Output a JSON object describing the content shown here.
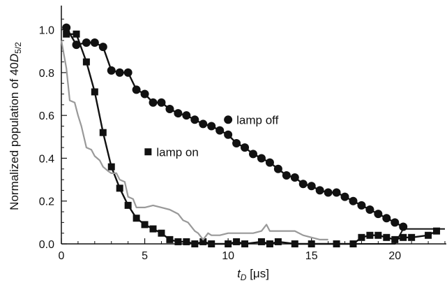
{
  "chart_data": {
    "type": "line",
    "xlabel": {
      "main": "t",
      "sub": "D",
      "unit": " [μs]"
    },
    "ylabel": {
      "main": "Normalized population of 40",
      "italic": "D",
      "sub": "5/2"
    },
    "xlim": [
      0,
      23
    ],
    "ylim": [
      0,
      1.1
    ],
    "x_ticks": [
      0,
      5,
      10,
      15,
      20
    ],
    "y_ticks": [
      0.0,
      0.2,
      0.4,
      0.6,
      0.8,
      1.0
    ],
    "x_tick_labels": [
      "0",
      "5",
      "10",
      "15",
      "20"
    ],
    "y_tick_labels": [
      "0.0",
      "0.2",
      "0.4",
      "0.6",
      "0.8",
      "1.0"
    ],
    "grid": false,
    "series": [
      {
        "name": "lamp off",
        "marker": "circle",
        "color": "#111111",
        "x": [
          0.3,
          0.9,
          1.5,
          2.0,
          2.5,
          3.0,
          3.5,
          4.0,
          4.5,
          5.0,
          5.5,
          6.0,
          6.5,
          7.0,
          7.5,
          8.0,
          8.5,
          9.0,
          9.5,
          10.0,
          10.5,
          11.0,
          11.5,
          12.0,
          12.5,
          13.0,
          13.5,
          14.0,
          14.5,
          15.0,
          15.5,
          16.0,
          16.5,
          17.0,
          17.5,
          18.0,
          18.5,
          19.0,
          19.5,
          20.0,
          20.5
        ],
        "y": [
          1.01,
          0.93,
          0.94,
          0.94,
          0.92,
          0.81,
          0.8,
          0.8,
          0.72,
          0.7,
          0.66,
          0.66,
          0.63,
          0.61,
          0.6,
          0.58,
          0.56,
          0.55,
          0.53,
          0.51,
          0.47,
          0.45,
          0.42,
          0.4,
          0.38,
          0.35,
          0.32,
          0.31,
          0.28,
          0.27,
          0.25,
          0.24,
          0.24,
          0.22,
          0.2,
          0.18,
          0.16,
          0.14,
          0.12,
          0.1,
          0.08
        ]
      },
      {
        "name": "lamp on",
        "marker": "square",
        "color": "#111111",
        "x": [
          0.3,
          0.9,
          1.5,
          2.0,
          2.5,
          3.0,
          3.5,
          4.0,
          4.5,
          5.0,
          5.5,
          6.0,
          6.5,
          7.0,
          7.5,
          8.0,
          8.5,
          9.0,
          10.0,
          10.5,
          11.0,
          12.0,
          12.5,
          13.0,
          14.0,
          15.0,
          16.5,
          17.5,
          18.0,
          18.5,
          19.0,
          19.5,
          20.0,
          20.5,
          21.0,
          22.0,
          22.5
        ],
        "y": [
          0.98,
          0.98,
          0.85,
          0.71,
          0.52,
          0.36,
          0.26,
          0.18,
          0.12,
          0.09,
          0.07,
          0.05,
          0.02,
          0.01,
          0.01,
          0.0,
          0.01,
          0.0,
          0.0,
          0.01,
          0.0,
          0.01,
          0.0,
          0.01,
          0.0,
          0.0,
          0.0,
          0.0,
          0.03,
          0.04,
          0.04,
          0.03,
          0.02,
          0.03,
          0.03,
          0.04,
          0.06
        ]
      },
      {
        "name": "",
        "marker": "none",
        "color": "#999999",
        "x": [
          0.0,
          0.3,
          0.5,
          0.8,
          1.0,
          1.2,
          1.5,
          1.8,
          2.0,
          2.3,
          2.5,
          2.8,
          3.0,
          3.3,
          3.5,
          3.8,
          4.0,
          4.3,
          4.5,
          4.8,
          5.0,
          5.5,
          6.0,
          6.5,
          7.0,
          7.3,
          7.6,
          8.0,
          8.2,
          8.5,
          8.8,
          9.0,
          9.5,
          10.0,
          10.5,
          11.0,
          11.5,
          12.0,
          12.3,
          12.5,
          13.0,
          13.5,
          14.0,
          14.5,
          15.0,
          15.5,
          16.0
        ],
        "y": [
          0.95,
          0.82,
          0.67,
          0.66,
          0.6,
          0.55,
          0.45,
          0.44,
          0.41,
          0.39,
          0.36,
          0.34,
          0.33,
          0.33,
          0.3,
          0.29,
          0.22,
          0.21,
          0.17,
          0.17,
          0.17,
          0.18,
          0.17,
          0.16,
          0.14,
          0.11,
          0.1,
          0.06,
          0.05,
          0.02,
          0.05,
          0.04,
          0.04,
          0.05,
          0.05,
          0.05,
          0.05,
          0.06,
          0.09,
          0.06,
          0.06,
          0.06,
          0.06,
          0.04,
          0.03,
          0.02,
          0.02
        ]
      }
    ],
    "annotations": [
      {
        "text": "lamp off",
        "marker": "circle",
        "x": 10.0,
        "y": 0.58
      },
      {
        "text": "lamp on",
        "marker": "square",
        "x": 5.2,
        "y": 0.43
      }
    ],
    "baseline": {
      "x": [
        15.5,
        20.0,
        20.5,
        23.0
      ],
      "y": [
        0.0,
        0.0,
        0.07,
        0.07
      ]
    }
  }
}
